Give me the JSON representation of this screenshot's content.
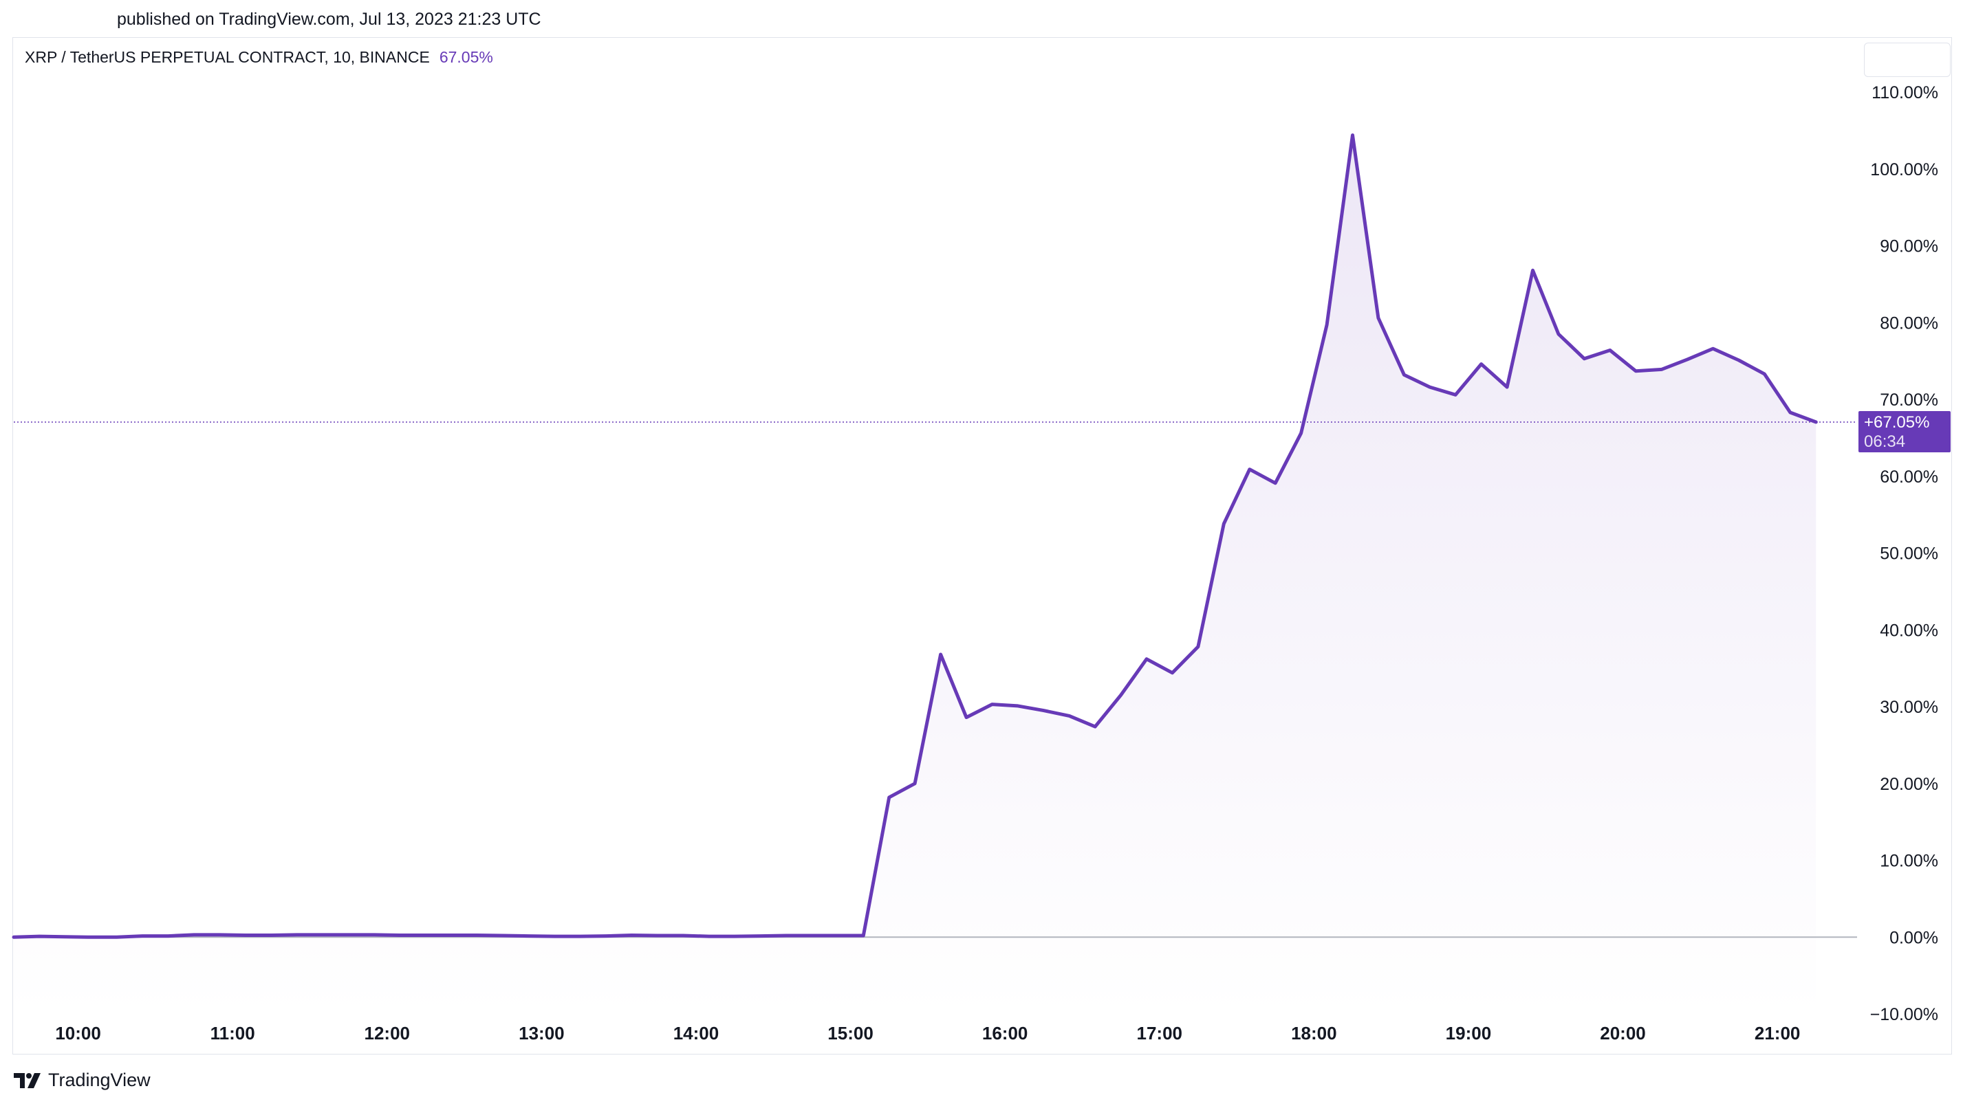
{
  "published_text": "published on TradingView.com, Jul 13, 2023 21:23 UTC",
  "header": {
    "symbol": "XRP / TetherUS PERPETUAL CONTRACT, 10, BINANCE",
    "change": "67.05%"
  },
  "price_tag": {
    "value": "+67.05%",
    "countdown": "06:34"
  },
  "footer": {
    "brand": "TradingView"
  },
  "colors": {
    "line": "#673ab7",
    "area_top": "#ede7f6",
    "tag_bg": "#673ab7",
    "zero_line": "#b2b5be",
    "text": "#131722"
  },
  "chart_data": {
    "type": "area",
    "xlabel": "",
    "ylabel": "",
    "x_ticks": [
      "10:00",
      "11:00",
      "12:00",
      "13:00",
      "14:00",
      "15:00",
      "16:00",
      "17:00",
      "18:00",
      "19:00",
      "20:00",
      "21:00"
    ],
    "y_ticks": [
      "110.00%",
      "100.00%",
      "90.00%",
      "80.00%",
      "70.00%",
      "60.00%",
      "50.00%",
      "40.00%",
      "30.00%",
      "20.00%",
      "10.00%",
      "0.00%",
      "−10.00%"
    ],
    "ylim": [
      -10,
      110
    ],
    "xlim_hours": [
      "09:35",
      "21:55"
    ],
    "grid": false,
    "last_value": 67.05,
    "points": [
      [
        "09:35",
        0.0
      ],
      [
        "09:45",
        0.1
      ],
      [
        "09:55",
        0.05
      ],
      [
        "10:05",
        0.0
      ],
      [
        "10:15",
        0.0
      ],
      [
        "10:25",
        0.15
      ],
      [
        "10:35",
        0.15
      ],
      [
        "10:45",
        0.3
      ],
      [
        "10:55",
        0.3
      ],
      [
        "11:05",
        0.25
      ],
      [
        "11:15",
        0.25
      ],
      [
        "11:25",
        0.3
      ],
      [
        "11:35",
        0.3
      ],
      [
        "11:45",
        0.3
      ],
      [
        "11:55",
        0.3
      ],
      [
        "12:05",
        0.25
      ],
      [
        "12:15",
        0.25
      ],
      [
        "12:25",
        0.25
      ],
      [
        "12:35",
        0.25
      ],
      [
        "12:45",
        0.2
      ],
      [
        "12:55",
        0.15
      ],
      [
        "13:05",
        0.1
      ],
      [
        "13:15",
        0.1
      ],
      [
        "13:25",
        0.15
      ],
      [
        "13:35",
        0.25
      ],
      [
        "13:45",
        0.2
      ],
      [
        "13:55",
        0.2
      ],
      [
        "14:05",
        0.1
      ],
      [
        "14:15",
        0.1
      ],
      [
        "14:25",
        0.15
      ],
      [
        "14:35",
        0.2
      ],
      [
        "14:45",
        0.2
      ],
      [
        "14:55",
        0.2
      ],
      [
        "15:05",
        0.2
      ],
      [
        "15:15",
        18.2
      ],
      [
        "15:25",
        20.0
      ],
      [
        "15:35",
        36.8
      ],
      [
        "15:45",
        28.6
      ],
      [
        "15:55",
        30.3
      ],
      [
        "16:05",
        30.1
      ],
      [
        "16:15",
        29.5
      ],
      [
        "16:25",
        28.8
      ],
      [
        "16:35",
        27.4
      ],
      [
        "16:45",
        31.5
      ],
      [
        "16:55",
        36.2
      ],
      [
        "17:05",
        34.4
      ],
      [
        "17:15",
        37.8
      ],
      [
        "17:25",
        53.8
      ],
      [
        "17:35",
        60.9
      ],
      [
        "17:45",
        59.1
      ],
      [
        "17:55",
        65.6
      ],
      [
        "18:05",
        79.7
      ],
      [
        "18:15",
        104.4
      ],
      [
        "18:25",
        80.6
      ],
      [
        "18:35",
        73.2
      ],
      [
        "18:45",
        71.6
      ],
      [
        "18:55",
        70.6
      ],
      [
        "19:05",
        74.6
      ],
      [
        "19:15",
        71.6
      ],
      [
        "19:25",
        86.8
      ],
      [
        "19:35",
        78.5
      ],
      [
        "19:45",
        75.3
      ],
      [
        "19:55",
        76.4
      ],
      [
        "20:05",
        73.7
      ],
      [
        "20:15",
        73.9
      ],
      [
        "20:25",
        75.2
      ],
      [
        "20:35",
        76.6
      ],
      [
        "20:45",
        75.1
      ],
      [
        "20:55",
        73.3
      ],
      [
        "21:05",
        68.3
      ],
      [
        "21:15",
        67.05
      ]
    ]
  }
}
